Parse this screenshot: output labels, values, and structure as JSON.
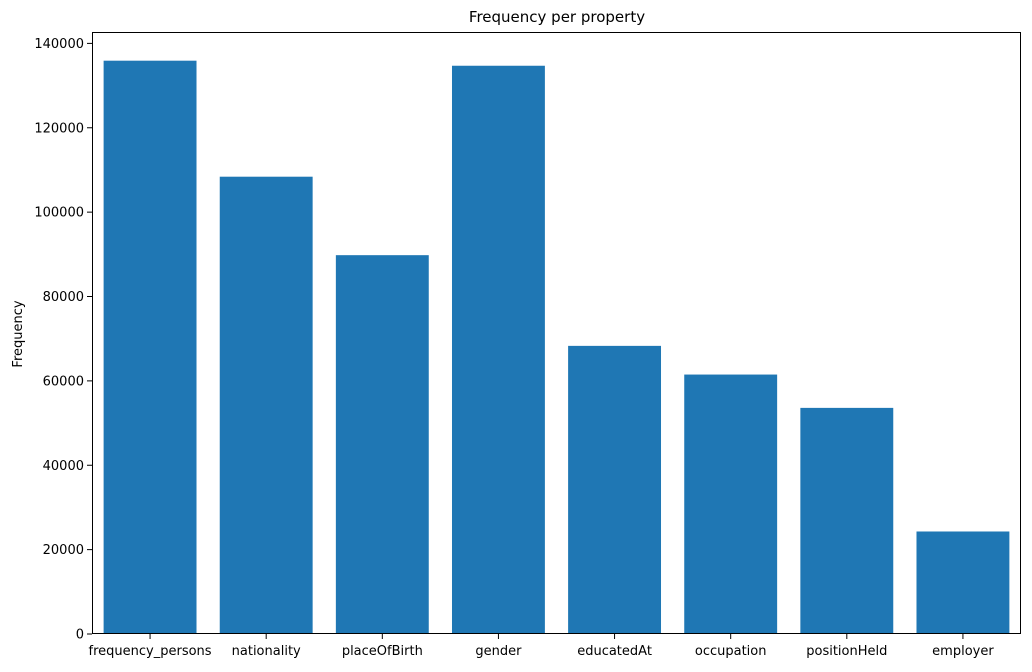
{
  "chart_data": {
    "type": "bar",
    "title": "Frequency per property",
    "xlabel": "",
    "ylabel": "Frequency",
    "categories": [
      "frequency_persons",
      "nationality",
      "placeOfBirth",
      "gender",
      "educatedAt",
      "occupation",
      "positionHeld",
      "employer"
    ],
    "values": [
      135900,
      108400,
      89800,
      134700,
      68300,
      61500,
      53600,
      24300
    ],
    "ylim": [
      0,
      142700
    ],
    "yticks": [
      0,
      20000,
      40000,
      60000,
      80000,
      100000,
      120000,
      140000
    ],
    "ytick_labels": [
      "0",
      "20000",
      "40000",
      "60000",
      "80000",
      "100000",
      "120000",
      "140000"
    ],
    "bar_color": "#1f77b4",
    "grid": false,
    "legend": "none"
  }
}
